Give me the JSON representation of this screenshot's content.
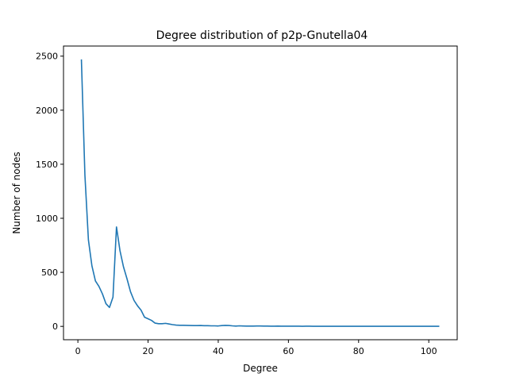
{
  "chart_data": {
    "type": "line",
    "title": "Degree distribution of p2p-Gnutella04",
    "xlabel": "Degree",
    "ylabel": "Number of nodes",
    "xlim": [
      -4.1,
      108.1
    ],
    "ylim": [
      -123.5,
      2593.5
    ],
    "xticks": [
      0,
      20,
      40,
      60,
      80,
      100
    ],
    "yticks": [
      0,
      500,
      1000,
      1500,
      2000,
      2500
    ],
    "grid": false,
    "legend": "none",
    "line_color": "#1f77b4",
    "series": [
      {
        "x": [
          1,
          2,
          3,
          4,
          5,
          6,
          7,
          8,
          9,
          10,
          11,
          12,
          13,
          14,
          15,
          16,
          17,
          18,
          19,
          20,
          21,
          22,
          23,
          24,
          25,
          26,
          27,
          28,
          29,
          30,
          31,
          32,
          33,
          34,
          35,
          36,
          37,
          38,
          39,
          40,
          41,
          42,
          43,
          44,
          45,
          46,
          47,
          48,
          49,
          50,
          51,
          52,
          53,
          54,
          55,
          56,
          57,
          58,
          59,
          60,
          61,
          62,
          63,
          64,
          65,
          66,
          67,
          68,
          69,
          70,
          71,
          72,
          73,
          74,
          75,
          76,
          77,
          78,
          79,
          80,
          81,
          82,
          83,
          84,
          85,
          86,
          87,
          88,
          89,
          90,
          91,
          92,
          93,
          94,
          95,
          96,
          97,
          98,
          99,
          100,
          101,
          102,
          103
        ],
        "values": [
          2470,
          1400,
          800,
          560,
          420,
          370,
          300,
          210,
          175,
          270,
          920,
          700,
          550,
          440,
          320,
          240,
          190,
          150,
          85,
          70,
          55,
          30,
          25,
          25,
          28,
          22,
          16,
          12,
          10,
          10,
          9,
          8,
          7,
          7,
          8,
          6,
          6,
          5,
          5,
          4,
          7,
          9,
          8,
          5,
          3,
          5,
          4,
          3,
          3,
          3,
          4,
          4,
          3,
          3,
          2,
          2,
          3,
          2,
          2,
          2,
          2,
          2,
          2,
          1,
          2,
          2,
          1,
          1,
          1,
          1,
          1,
          1,
          1,
          1,
          1,
          1,
          1,
          1,
          1,
          1,
          1,
          1,
          1,
          1,
          1,
          1,
          1,
          1,
          1,
          1,
          1,
          1,
          1,
          1,
          1,
          1,
          1,
          1,
          1,
          1,
          1,
          1,
          1
        ]
      }
    ]
  }
}
